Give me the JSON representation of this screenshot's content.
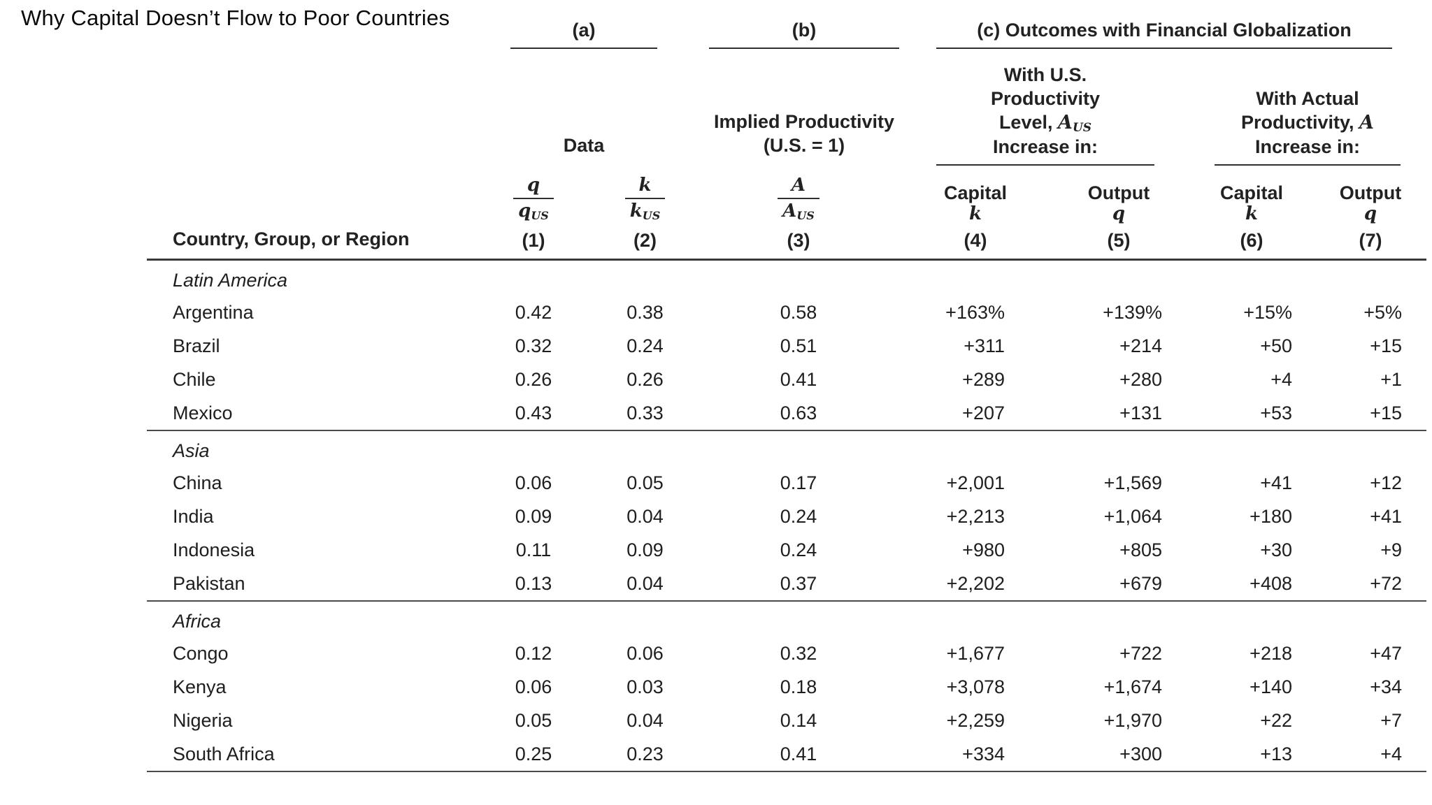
{
  "page": {
    "title": "Why Capital Doesn’t Flow to Poor Countries"
  },
  "table": {
    "groups": {
      "a": "(a)",
      "b": "(b)",
      "c": "(c) Outcomes with Financial Globalization"
    },
    "subheads": {
      "data": "Data",
      "implied_line1": "Implied Productivity",
      "implied_line2": "(U.S. = 1)",
      "us_block": {
        "line1": "With U.S.",
        "line2": "Productivity",
        "line3_pre": "Level, ",
        "line3_var": "A",
        "line3_sub": "US",
        "line4": "Increase in:"
      },
      "actual_block": {
        "line1": "With Actual",
        "line2_pre": "Productivity, ",
        "line2_var": "A",
        "line3": "Increase in:"
      }
    },
    "columns": {
      "country_header": "Country, Group, or Region",
      "fracs": [
        {
          "num": "q",
          "den": "q",
          "sub": "US",
          "index": "(1)"
        },
        {
          "num": "k",
          "den": "k",
          "sub": "US",
          "index": "(2)"
        },
        {
          "num": "A",
          "den": "A",
          "sub": "US",
          "index": "(3)"
        }
      ],
      "leaves": [
        {
          "label": "Capital",
          "var": "k",
          "index": "(4)"
        },
        {
          "label": "Output",
          "var": "q",
          "index": "(5)"
        },
        {
          "label": "Capital",
          "var": "k",
          "index": "(6)"
        },
        {
          "label": "Output",
          "var": "q",
          "index": "(7)"
        }
      ]
    },
    "sections": [
      {
        "region": "Latin America",
        "rows": [
          {
            "country": "Argentina",
            "values": [
              "0.42",
              "0.38",
              "0.58",
              "+163%",
              "+139%",
              "+15%",
              "+5%"
            ]
          },
          {
            "country": "Brazil",
            "values": [
              "0.32",
              "0.24",
              "0.51",
              "+311",
              "+214",
              "+50",
              "+15"
            ]
          },
          {
            "country": "Chile",
            "values": [
              "0.26",
              "0.26",
              "0.41",
              "+289",
              "+280",
              "+4",
              "+1"
            ]
          },
          {
            "country": "Mexico",
            "values": [
              "0.43",
              "0.33",
              "0.63",
              "+207",
              "+131",
              "+53",
              "+15"
            ]
          }
        ]
      },
      {
        "region": "Asia",
        "rows": [
          {
            "country": "China",
            "values": [
              "0.06",
              "0.05",
              "0.17",
              "+2,001",
              "+1,569",
              "+41",
              "+12"
            ]
          },
          {
            "country": "India",
            "values": [
              "0.09",
              "0.04",
              "0.24",
              "+2,213",
              "+1,064",
              "+180",
              "+41"
            ]
          },
          {
            "country": "Indonesia",
            "values": [
              "0.11",
              "0.09",
              "0.24",
              "+980",
              "+805",
              "+30",
              "+9"
            ]
          },
          {
            "country": "Pakistan",
            "values": [
              "0.13",
              "0.04",
              "0.37",
              "+2,202",
              "+679",
              "+408",
              "+72"
            ]
          }
        ]
      },
      {
        "region": "Africa",
        "rows": [
          {
            "country": "Congo",
            "values": [
              "0.12",
              "0.06",
              "0.32",
              "+1,677",
              "+722",
              "+218",
              "+47"
            ]
          },
          {
            "country": "Kenya",
            "values": [
              "0.06",
              "0.03",
              "0.18",
              "+3,078",
              "+1,674",
              "+140",
              "+34"
            ]
          },
          {
            "country": "Nigeria",
            "values": [
              "0.05",
              "0.04",
              "0.14",
              "+2,259",
              "+1,970",
              "+22",
              "+7"
            ]
          },
          {
            "country": "South Africa",
            "values": [
              "0.25",
              "0.23",
              "0.41",
              "+334",
              "+300",
              "+13",
              "+4"
            ]
          }
        ]
      }
    ]
  }
}
